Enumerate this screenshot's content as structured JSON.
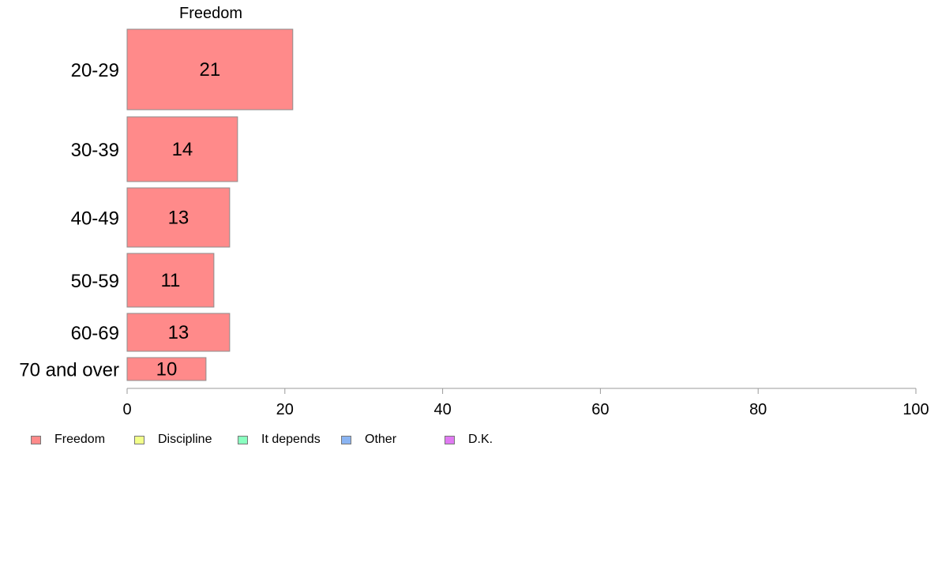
{
  "chart_data": {
    "type": "bar",
    "orientation": "horizontal",
    "title": "",
    "series_heading": "Freedom",
    "categories": [
      "20-29",
      "30-39",
      "40-49",
      "50-59",
      "60-69",
      "70 and over"
    ],
    "series": [
      {
        "name": "Freedom",
        "values": [
          21,
          14,
          13,
          11,
          13,
          10
        ],
        "color": "#ff8a8a"
      }
    ],
    "data_labels": [
      "21",
      "14",
      "13",
      "11",
      "13",
      "10"
    ],
    "xlim": [
      0,
      100
    ],
    "x_ticks": [
      0,
      20,
      40,
      60,
      80,
      100
    ],
    "x_tick_labels": [
      "0",
      "20",
      "40",
      "60",
      "80",
      "100"
    ],
    "xlabel": "",
    "ylabel": "",
    "grid": false,
    "legend_position": "bottom-left"
  },
  "legend": {
    "items": [
      {
        "label": "Freedom",
        "color": "#ff8a8a"
      },
      {
        "label": "Discipline",
        "color": "#f2ff8a"
      },
      {
        "label": "It depends",
        "color": "#8affc0"
      },
      {
        "label": "Other",
        "color": "#8ab4f2"
      },
      {
        "label": "D.K.",
        "color": "#e07af2"
      }
    ]
  }
}
